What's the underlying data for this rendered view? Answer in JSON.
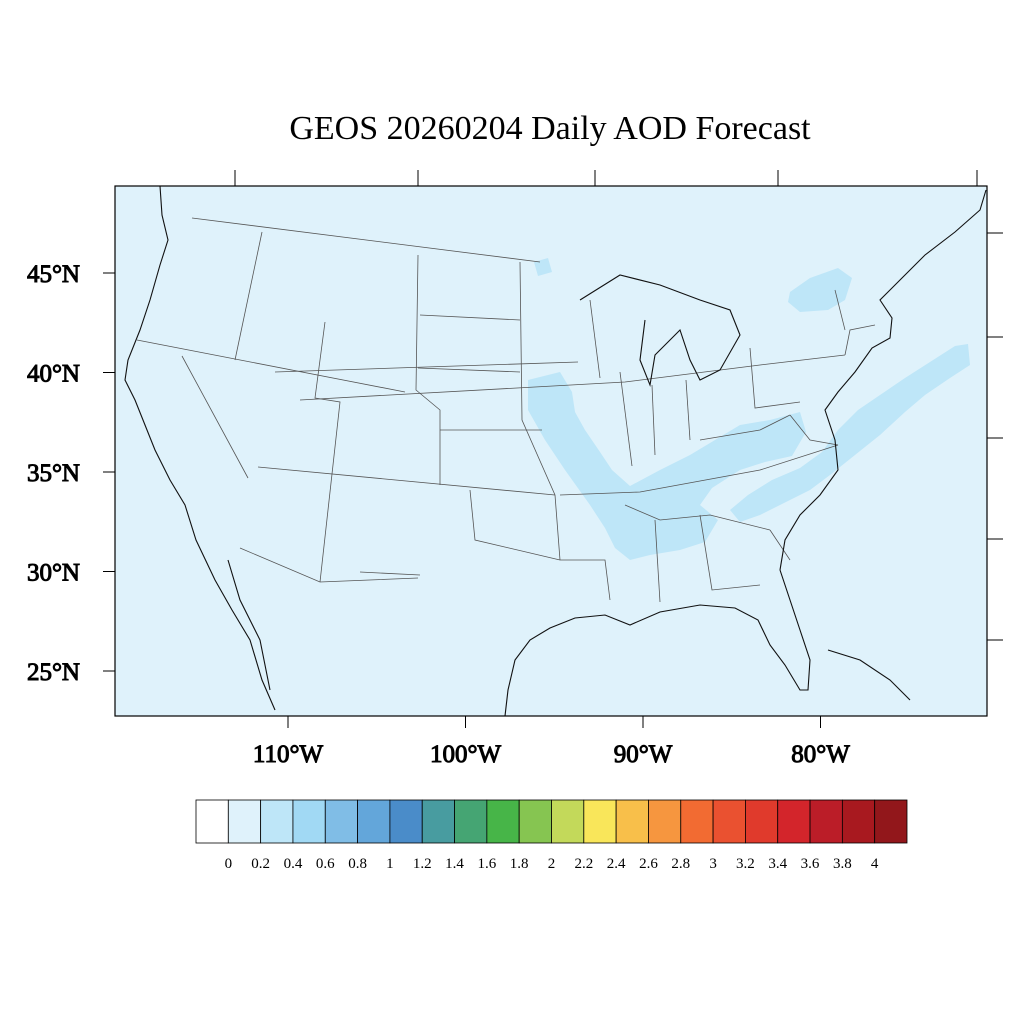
{
  "title": "GEOS 20260204 Daily AOD Forecast",
  "map": {
    "background_color": "#dff2fb",
    "lat_labels": [
      {
        "value": 45,
        "text": "45°N"
      },
      {
        "value": 40,
        "text": "40°N"
      },
      {
        "value": 35,
        "text": "35°N"
      },
      {
        "value": 30,
        "text": "30°N"
      },
      {
        "value": 25,
        "text": "25°N"
      }
    ],
    "lon_labels": [
      {
        "value": -110,
        "text": "110°W"
      },
      {
        "value": -100,
        "text": "100°W"
      },
      {
        "value": -90,
        "text": "90°W"
      },
      {
        "value": -80,
        "text": "80°W"
      }
    ]
  },
  "colorbar": {
    "colors": [
      "#ffffff",
      "#dff2fb",
      "#bee6f8",
      "#a1d9f4",
      "#80bde6",
      "#63a6da",
      "#4a8cc9",
      "#489ca0",
      "#45a573",
      "#47b548",
      "#86c551",
      "#c3d95a",
      "#f9e65a",
      "#f8bf4a",
      "#f6963f",
      "#f26b32",
      "#ea5130",
      "#e03a2c",
      "#d3252b",
      "#bb1d28",
      "#a8191f",
      "#92171b"
    ],
    "labels": [
      "0",
      "0.2",
      "0.4",
      "0.6",
      "0.8",
      "1",
      "1.2",
      "1.4",
      "1.6",
      "1.8",
      "2",
      "2.2",
      "2.4",
      "2.6",
      "2.8",
      "3",
      "3.2",
      "3.4",
      "3.6",
      "3.8",
      "4"
    ]
  }
}
